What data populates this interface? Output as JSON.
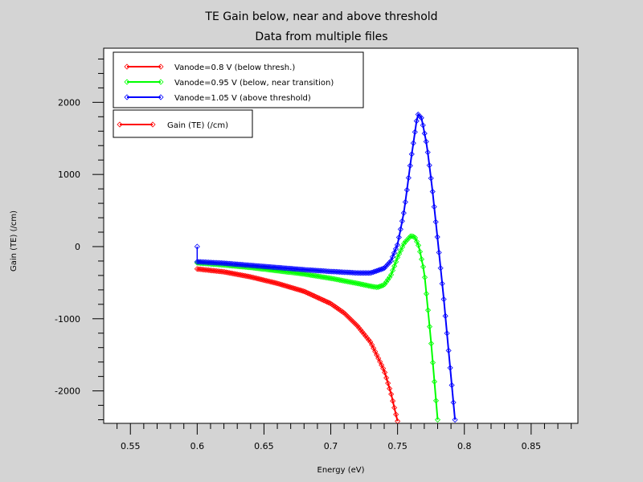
{
  "chart_data": {
    "type": "line",
    "title": "TE Gain below, near and above threshold",
    "subtitle": "Data from multiple files",
    "xlabel": "Energy (eV)",
    "ylabel": "Gain (TE) (/cm)",
    "xlim": [
      0.53,
      0.885
    ],
    "ylim": [
      -2450,
      2750
    ],
    "x_ticks": [
      0.55,
      0.6,
      0.65,
      0.7,
      0.75,
      0.8,
      0.85
    ],
    "x_tick_labels": [
      "0.55",
      "0.6",
      "0.65",
      "0.7",
      "0.75",
      "0.8",
      "0.85"
    ],
    "y_ticks": [
      2000,
      1000,
      0,
      -1000,
      -2000
    ],
    "y_tick_labels": [
      "2000",
      "1000",
      "0",
      "-1000",
      "-2000"
    ],
    "legend_group_title": "Gain (TE) (/cm)",
    "series": [
      {
        "name": "Vanode=0.8 V (below thresh.)",
        "color": "#ff0000",
        "x": [
          0.6,
          0.62,
          0.64,
          0.66,
          0.68,
          0.7,
          0.71,
          0.72,
          0.73,
          0.74,
          0.745,
          0.75
        ],
        "y": [
          -310,
          -350,
          -420,
          -510,
          -620,
          -790,
          -920,
          -1100,
          -1330,
          -1720,
          -2030,
          -2420
        ]
      },
      {
        "name": "Vanode=0.95 V (below, near transition)",
        "color": "#00ff00",
        "x": [
          0.6,
          0.62,
          0.64,
          0.66,
          0.68,
          0.7,
          0.72,
          0.73,
          0.735,
          0.74,
          0.745,
          0.75,
          0.755,
          0.76,
          0.763,
          0.766,
          0.77,
          0.775,
          0.78
        ],
        "y": [
          -225,
          -255,
          -290,
          -335,
          -380,
          -440,
          -510,
          -550,
          -565,
          -530,
          -400,
          -150,
          50,
          150,
          130,
          0,
          -350,
          -1300,
          -2400
        ]
      },
      {
        "name": "Vanode=1.05 V (above threshold)",
        "color": "#0000ff",
        "x": [
          0.6,
          0.62,
          0.64,
          0.66,
          0.68,
          0.7,
          0.72,
          0.73,
          0.74,
          0.745,
          0.75,
          0.755,
          0.76,
          0.765,
          0.768,
          0.772,
          0.776,
          0.78,
          0.785,
          0.79,
          0.793
        ],
        "y": [
          -210,
          -230,
          -260,
          -290,
          -320,
          -345,
          -365,
          -365,
          -300,
          -200,
          30,
          500,
          1200,
          1840,
          1780,
          1400,
          800,
          100,
          -800,
          -1800,
          -2400
        ]
      }
    ],
    "grid": false,
    "legend_position": "top-left"
  }
}
